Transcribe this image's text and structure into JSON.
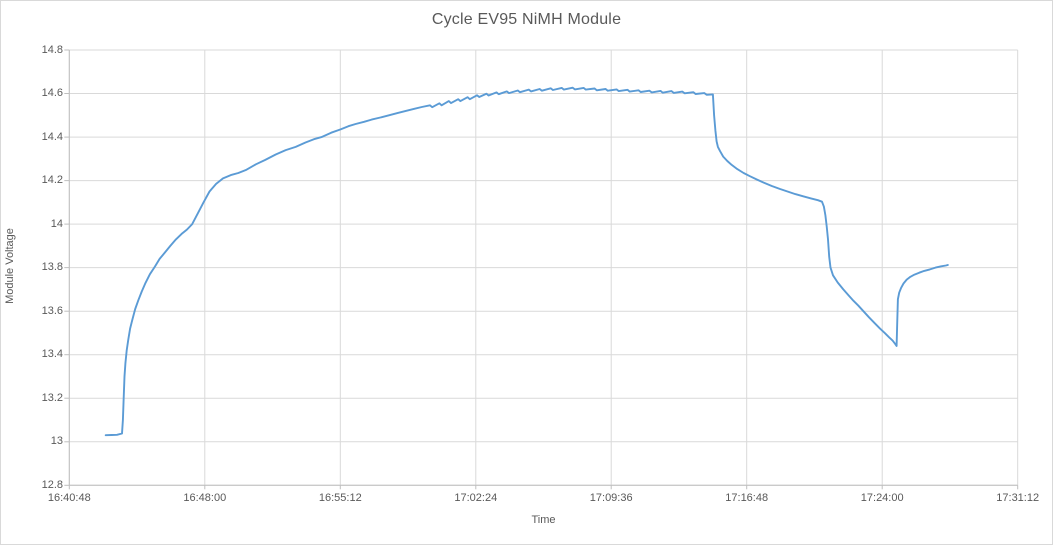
{
  "chart_data": {
    "type": "line",
    "title": "Cycle EV95 NiMH Module",
    "xlabel": "Time",
    "ylabel": "Module Voltage",
    "grid": true,
    "legend": "none",
    "line_color": "#5B9BD5",
    "gridline_color": "#d9d9d9",
    "axis_line_color": "#bfbfbf",
    "text_color": "#595959",
    "ylim": [
      12.8,
      14.8
    ],
    "y_tick_labels": [
      "12.8",
      "13",
      "13.2",
      "13.4",
      "13.6",
      "13.8",
      "14",
      "14.2",
      "14.4",
      "14.6",
      "14.8"
    ],
    "y_tick_values": [
      12.8,
      13.0,
      13.2,
      13.4,
      13.6,
      13.8,
      14.0,
      14.2,
      14.4,
      14.6,
      14.8
    ],
    "x_tick_labels": [
      "16:40:48",
      "16:48:00",
      "16:55:12",
      "17:02:24",
      "17:09:36",
      "17:16:48",
      "17:24:00",
      "17:31:12"
    ],
    "x_start_time": "16:40:48",
    "x_end_time": "17:31:12",
    "x_span_seconds": 3024,
    "x_tick_interval_seconds": 432,
    "series": [
      {
        "name": "Module Voltage",
        "points_t_seconds_v_volts": [
          [
            116,
            13.03
          ],
          [
            135,
            13.031
          ],
          [
            152,
            13.032
          ],
          [
            168,
            13.038
          ],
          [
            171,
            13.1
          ],
          [
            173,
            13.19
          ],
          [
            176,
            13.3
          ],
          [
            179,
            13.36
          ],
          [
            183,
            13.42
          ],
          [
            188,
            13.47
          ],
          [
            194,
            13.52
          ],
          [
            201,
            13.56
          ],
          [
            210,
            13.61
          ],
          [
            220,
            13.65
          ],
          [
            231,
            13.69
          ],
          [
            243,
            13.73
          ],
          [
            257,
            13.77
          ],
          [
            273,
            13.805
          ],
          [
            288,
            13.84
          ],
          [
            305,
            13.87
          ],
          [
            322,
            13.9
          ],
          [
            340,
            13.93
          ],
          [
            358,
            13.955
          ],
          [
            375,
            13.975
          ],
          [
            392,
            14.0
          ],
          [
            410,
            14.05
          ],
          [
            428,
            14.1
          ],
          [
            447,
            14.15
          ],
          [
            468,
            14.185
          ],
          [
            490,
            14.21
          ],
          [
            515,
            14.225
          ],
          [
            539,
            14.235
          ],
          [
            565,
            14.25
          ],
          [
            595,
            14.275
          ],
          [
            625,
            14.295
          ],
          [
            658,
            14.32
          ],
          [
            690,
            14.34
          ],
          [
            722,
            14.355
          ],
          [
            753,
            14.375
          ],
          [
            780,
            14.39
          ],
          [
            804,
            14.4
          ],
          [
            835,
            14.42
          ],
          [
            865,
            14.435
          ],
          [
            890,
            14.45
          ],
          [
            913,
            14.46
          ],
          [
            940,
            14.47
          ],
          [
            964,
            14.48
          ],
          [
            992,
            14.49
          ],
          [
            1019,
            14.5
          ],
          [
            1046,
            14.51
          ],
          [
            1073,
            14.52
          ],
          [
            1100,
            14.53
          ],
          [
            1124,
            14.538
          ],
          [
            1150,
            14.546
          ],
          [
            1157,
            14.537
          ],
          [
            1180,
            14.555
          ],
          [
            1187,
            14.546
          ],
          [
            1210,
            14.565
          ],
          [
            1217,
            14.556
          ],
          [
            1240,
            14.574
          ],
          [
            1247,
            14.565
          ],
          [
            1270,
            14.583
          ],
          [
            1277,
            14.574
          ],
          [
            1300,
            14.592
          ],
          [
            1307,
            14.584
          ],
          [
            1330,
            14.599
          ],
          [
            1337,
            14.591
          ],
          [
            1362,
            14.605
          ],
          [
            1369,
            14.597
          ],
          [
            1395,
            14.61
          ],
          [
            1402,
            14.602
          ],
          [
            1430,
            14.614
          ],
          [
            1437,
            14.606
          ],
          [
            1465,
            14.618
          ],
          [
            1472,
            14.61
          ],
          [
            1500,
            14.621
          ],
          [
            1507,
            14.613
          ],
          [
            1535,
            14.624
          ],
          [
            1542,
            14.616
          ],
          [
            1570,
            14.626
          ],
          [
            1577,
            14.618
          ],
          [
            1605,
            14.627
          ],
          [
            1612,
            14.619
          ],
          [
            1640,
            14.626
          ],
          [
            1647,
            14.618
          ],
          [
            1675,
            14.623
          ],
          [
            1682,
            14.615
          ],
          [
            1710,
            14.621
          ],
          [
            1717,
            14.613
          ],
          [
            1745,
            14.619
          ],
          [
            1752,
            14.611
          ],
          [
            1780,
            14.617
          ],
          [
            1787,
            14.609
          ],
          [
            1815,
            14.615
          ],
          [
            1822,
            14.607
          ],
          [
            1850,
            14.613
          ],
          [
            1857,
            14.605
          ],
          [
            1885,
            14.612
          ],
          [
            1892,
            14.604
          ],
          [
            1920,
            14.611
          ],
          [
            1927,
            14.603
          ],
          [
            1955,
            14.609
          ],
          [
            1962,
            14.601
          ],
          [
            1990,
            14.606
          ],
          [
            1997,
            14.598
          ],
          [
            2025,
            14.602
          ],
          [
            2032,
            14.594
          ],
          [
            2052,
            14.596
          ],
          [
            2056,
            14.5
          ],
          [
            2060,
            14.43
          ],
          [
            2064,
            14.38
          ],
          [
            2068,
            14.355
          ],
          [
            2075,
            14.335
          ],
          [
            2085,
            14.31
          ],
          [
            2098,
            14.29
          ],
          [
            2112,
            14.272
          ],
          [
            2130,
            14.253
          ],
          [
            2150,
            14.235
          ],
          [
            2170,
            14.22
          ],
          [
            2192,
            14.205
          ],
          [
            2215,
            14.19
          ],
          [
            2240,
            14.175
          ],
          [
            2265,
            14.162
          ],
          [
            2290,
            14.15
          ],
          [
            2315,
            14.138
          ],
          [
            2340,
            14.128
          ],
          [
            2365,
            14.118
          ],
          [
            2387,
            14.11
          ],
          [
            2400,
            14.103
          ],
          [
            2406,
            14.08
          ],
          [
            2411,
            14.04
          ],
          [
            2415,
            13.99
          ],
          [
            2419,
            13.93
          ],
          [
            2423,
            13.85
          ],
          [
            2427,
            13.8
          ],
          [
            2435,
            13.765
          ],
          [
            2450,
            13.732
          ],
          [
            2468,
            13.7
          ],
          [
            2485,
            13.672
          ],
          [
            2500,
            13.648
          ],
          [
            2516,
            13.625
          ],
          [
            2532,
            13.6
          ],
          [
            2550,
            13.572
          ],
          [
            2568,
            13.545
          ],
          [
            2585,
            13.52
          ],
          [
            2600,
            13.5
          ],
          [
            2614,
            13.48
          ],
          [
            2625,
            13.465
          ],
          [
            2633,
            13.45
          ],
          [
            2638,
            13.44
          ],
          [
            2640,
            13.56
          ],
          [
            2642,
            13.655
          ],
          [
            2646,
            13.685
          ],
          [
            2652,
            13.706
          ],
          [
            2660,
            13.727
          ],
          [
            2670,
            13.745
          ],
          [
            2682,
            13.758
          ],
          [
            2695,
            13.768
          ],
          [
            2710,
            13.777
          ],
          [
            2726,
            13.785
          ],
          [
            2744,
            13.792
          ],
          [
            2762,
            13.8
          ],
          [
            2780,
            13.806
          ],
          [
            2795,
            13.81
          ],
          [
            2801,
            13.812
          ]
        ]
      }
    ]
  }
}
